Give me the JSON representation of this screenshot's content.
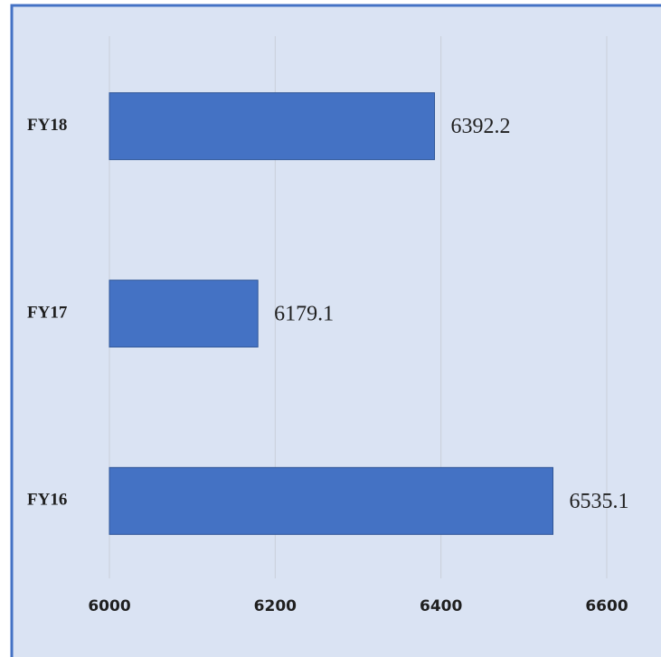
{
  "chart_data": {
    "type": "bar",
    "orientation": "horizontal",
    "categories": [
      "FY18",
      "FY17",
      "FY16"
    ],
    "values": [
      6392.2,
      6179.1,
      6535.1
    ],
    "color": "#4472c4",
    "xlim": [
      6000,
      6600
    ],
    "xticks": [
      6000,
      6200,
      6400,
      6600
    ],
    "grid": true
  }
}
